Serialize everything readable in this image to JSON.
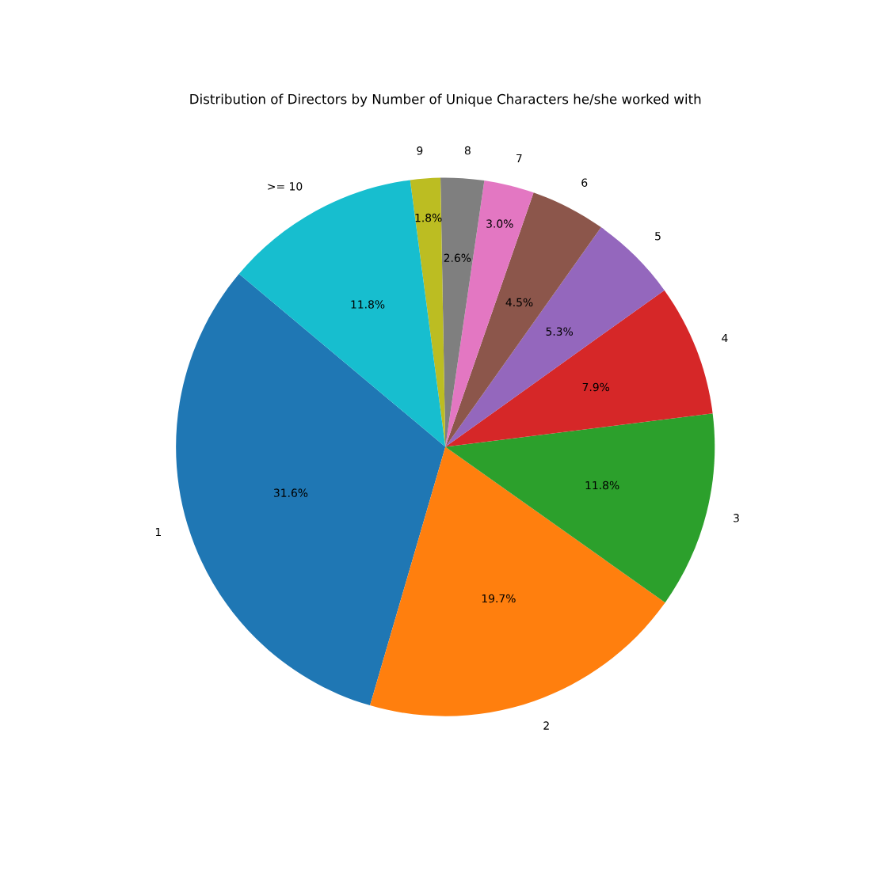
{
  "chart_data": {
    "type": "pie",
    "title": "Distribution of Directors by Number of Unique Characters he/she worked with",
    "categories": [
      "1",
      "2",
      "3",
      "4",
      "5",
      "6",
      "7",
      "8",
      "9",
      ">= 10"
    ],
    "values": [
      31.6,
      19.7,
      11.8,
      7.9,
      5.3,
      4.5,
      3.0,
      2.6,
      1.8,
      11.8
    ],
    "value_labels": [
      "31.6%",
      "19.7%",
      "11.8%",
      "7.9%",
      "5.3%",
      "4.5%",
      "3.0%",
      "2.6%",
      "1.8%",
      "11.8%"
    ],
    "colors": [
      "#1f77b4",
      "#ff7f0e",
      "#2ca02c",
      "#d62728",
      "#9467bd",
      "#8c564b",
      "#e377c2",
      "#7f7f7f",
      "#bcbd22",
      "#17becf"
    ],
    "legend": false
  }
}
